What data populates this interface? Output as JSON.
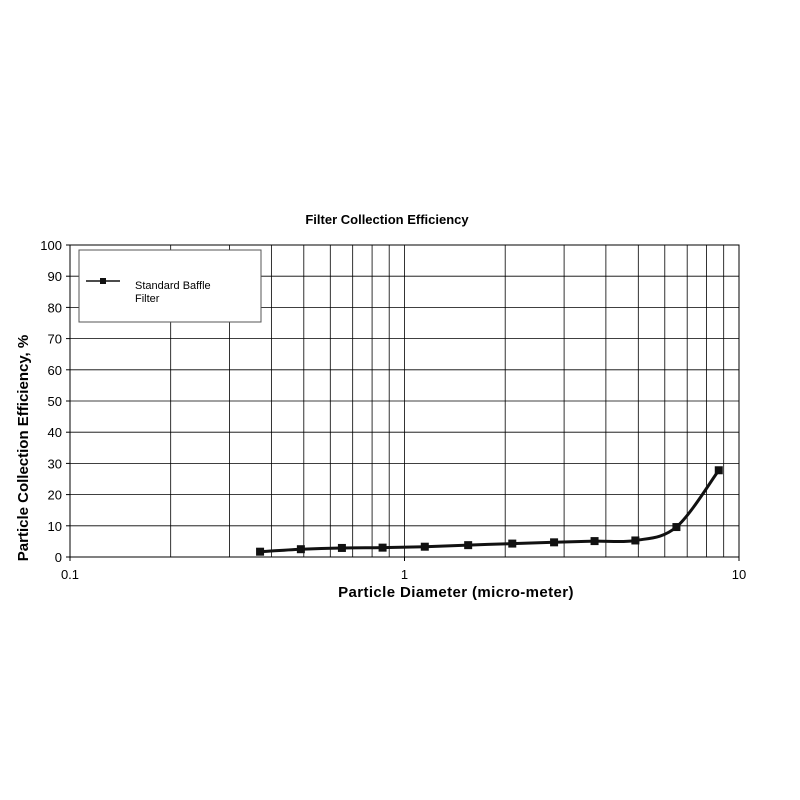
{
  "chart_data": {
    "type": "line",
    "title": "Filter Collection Efficiency",
    "xlabel": "Particle Diameter (micro-meter)",
    "ylabel": "Particle Collection Efficiency, %",
    "x_scale": "log",
    "xlim": [
      0.1,
      10
    ],
    "ylim": [
      0,
      100
    ],
    "x_ticks": [
      0.1,
      1,
      10
    ],
    "x_tick_labels": [
      "0.1",
      "1",
      "10"
    ],
    "y_ticks": [
      0,
      10,
      20,
      30,
      40,
      50,
      60,
      70,
      80,
      90,
      100
    ],
    "y_tick_labels": [
      "0",
      "10",
      "20",
      "30",
      "40",
      "50",
      "60",
      "70",
      "80",
      "90",
      "100"
    ],
    "grid": true,
    "legend_position": "top-left",
    "series": [
      {
        "name": "Standard Baffle Filter",
        "color": "#111111",
        "marker": "square",
        "x": [
          0.37,
          0.49,
          0.65,
          0.86,
          1.15,
          1.55,
          2.1,
          2.8,
          3.7,
          4.9,
          6.5,
          8.7
        ],
        "y": [
          1.7,
          2.5,
          2.9,
          3.0,
          3.3,
          3.8,
          4.3,
          4.7,
          5.1,
          5.3,
          9.6,
          27.8
        ]
      }
    ]
  },
  "legend": {
    "line1": "Standard Baffle",
    "line2": "Filter"
  }
}
